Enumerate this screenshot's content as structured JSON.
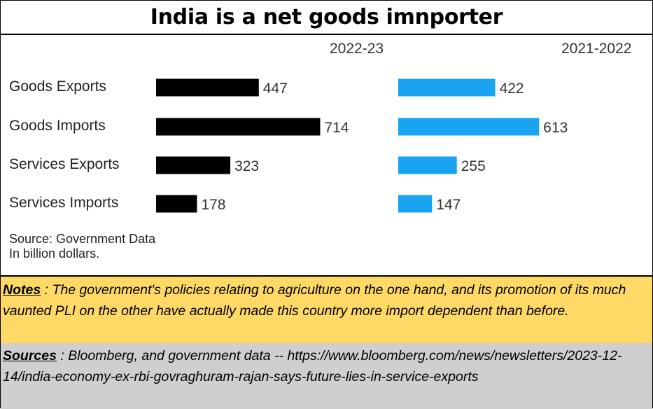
{
  "title": "India is a net goods imnporter",
  "chart_data": {
    "type": "bar",
    "orientation": "horizontal",
    "categories": [
      "Goods Exports",
      "Goods Imports",
      "Services Exports",
      "Services Imports"
    ],
    "series": [
      {
        "name": "2022-23",
        "values": [
          447,
          714,
          323,
          178
        ],
        "color": "#000000"
      },
      {
        "name": "2021-2022",
        "values": [
          422,
          613,
          255,
          147
        ],
        "color": "#1aa3f0"
      }
    ],
    "source_note": "Source: Government Data",
    "unit_note": "In billion dollars."
  },
  "notes": {
    "label": "Notes",
    "text": " : The government's policies relating to agriculture on the one hand, and its promotion of its much vaunted PLI on the other have actually made this country more import dependent than before."
  },
  "sources": {
    "label": "Sources",
    "text": " : Bloomberg, and government data -- https://www.bloomberg.com/news/newsletters/2023-12-14/india-economy-ex-rbi-govraghuram-rajan-says-future-lies-in-service-exports"
  }
}
